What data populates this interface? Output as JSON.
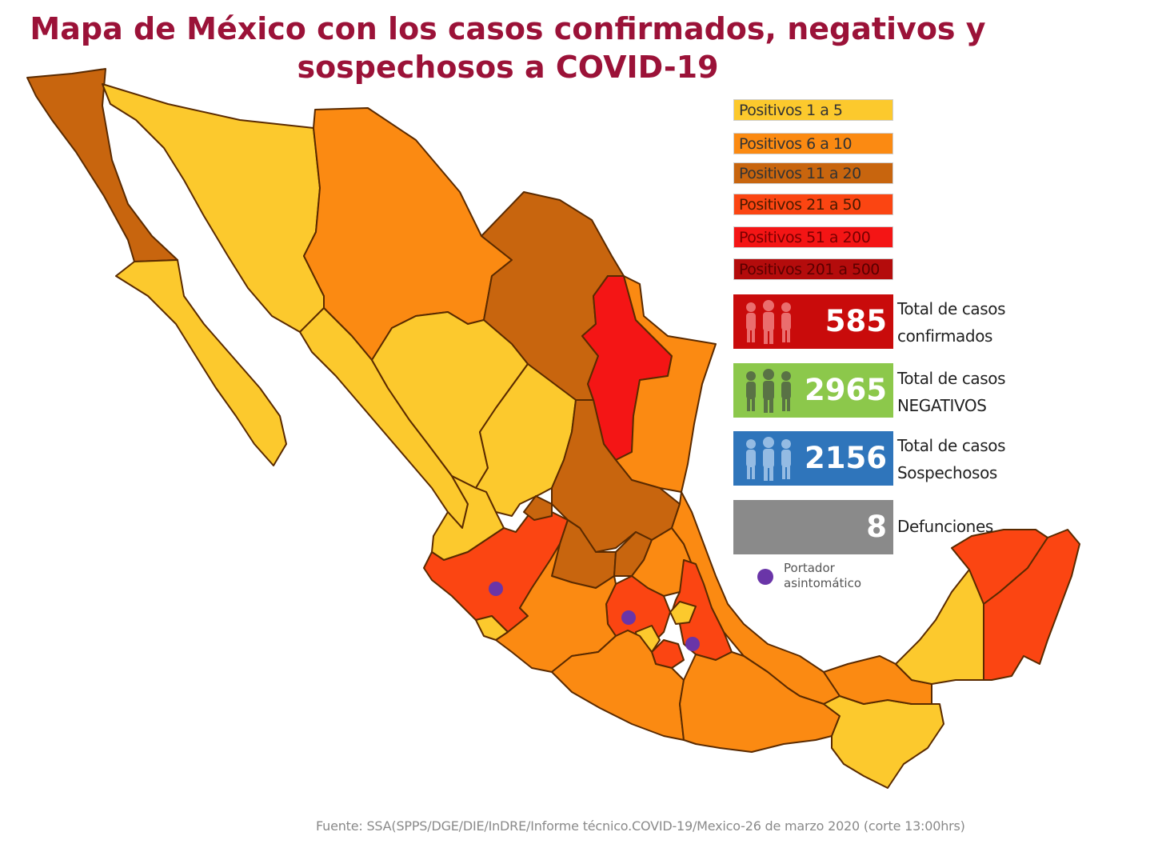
{
  "title": {
    "line1": "Mapa de México con los casos confirmados, negativos y",
    "line2": "sospechosos a COVID-19"
  },
  "legend": [
    {
      "label": "Positivos 1 a 5",
      "color": "#fcc92d",
      "text_color": "#333333"
    },
    {
      "label": "Positivos 6 a 10",
      "color": "#fb8a12",
      "text_color": "#333333"
    },
    {
      "label": "Positivos 11 a 20",
      "color": "#c8650e",
      "text_color": "#333333"
    },
    {
      "label": "Positivos 21 a 50",
      "color": "#fb4512",
      "text_color": "#4a1a00"
    },
    {
      "label": "Positivos 51 a 200",
      "color": "#f41515",
      "text_color": "#7a0000"
    },
    {
      "label": "Positivos 201 a 500",
      "color": "#b40c0c",
      "text_color": "#5a0000"
    }
  ],
  "stats": {
    "confirmados": {
      "value": "585",
      "label_line1": "Total de casos",
      "label_line2": "confirmados",
      "color": "#c90b0b",
      "icon": "people-group-icon"
    },
    "negativos": {
      "value": "2965",
      "label_line1": "Total de casos",
      "label_line2": "NEGATIVOS",
      "color": "#8cc84b",
      "icon": "people-group-icon"
    },
    "sospechosos": {
      "value": "2156",
      "label_line1": "Total de casos",
      "label_line2": "Sospechosos",
      "color": "#2f75bb",
      "icon": "people-group-icon"
    },
    "defunciones": {
      "value": "8",
      "label_line1": "Defunciones",
      "color": "#8a8a8a"
    }
  },
  "portador": {
    "line1": "Portador",
    "line2": "asintomático",
    "color": "#6a35a8"
  },
  "source": "Fuente: SSA(SPPS/DGE/DIE/InDRE/Informe técnico.COVID-19/Mexico-26 de marzo 2020 (corte 13:00hrs)",
  "colors": {
    "title": "#9b1238",
    "positivos_1_5": "#fcc92d",
    "positivos_6_10": "#fb8a12",
    "positivos_11_20": "#c8650e",
    "positivos_21_50": "#fb4512",
    "positivos_51_200": "#f41515",
    "border": "#5a2a00"
  }
}
